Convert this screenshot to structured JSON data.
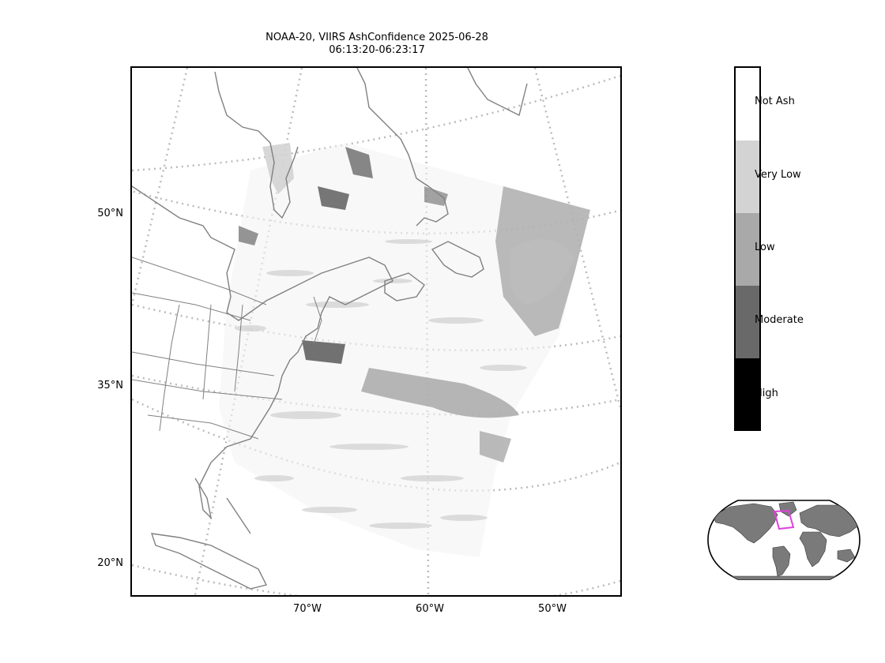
{
  "title": {
    "line1": "NOAA-20, VIIRS AshConfidence 2025-06-28",
    "line2": "06:13:20-06:23:17"
  },
  "latitude_labels": [
    "50°N",
    "35°N",
    "20°N"
  ],
  "longitude_labels": [
    "70°W",
    "60°W",
    "50°W"
  ],
  "colorbar": {
    "categories": [
      {
        "label": "Not Ash",
        "color": "#ffffff"
      },
      {
        "label": "Very Low",
        "color": "#d3d3d3"
      },
      {
        "label": "Low",
        "color": "#a9a9a9"
      },
      {
        "label": "Moderate",
        "color": "#696969"
      },
      {
        "label": "High",
        "color": "#000000"
      }
    ]
  },
  "colors": {
    "coastline": "#808080",
    "graticule": "#bbbbbb",
    "land_inset": "#7a7a7a",
    "highlight_box": "#e040e0"
  },
  "icons": [
    "world-inset-map"
  ]
}
